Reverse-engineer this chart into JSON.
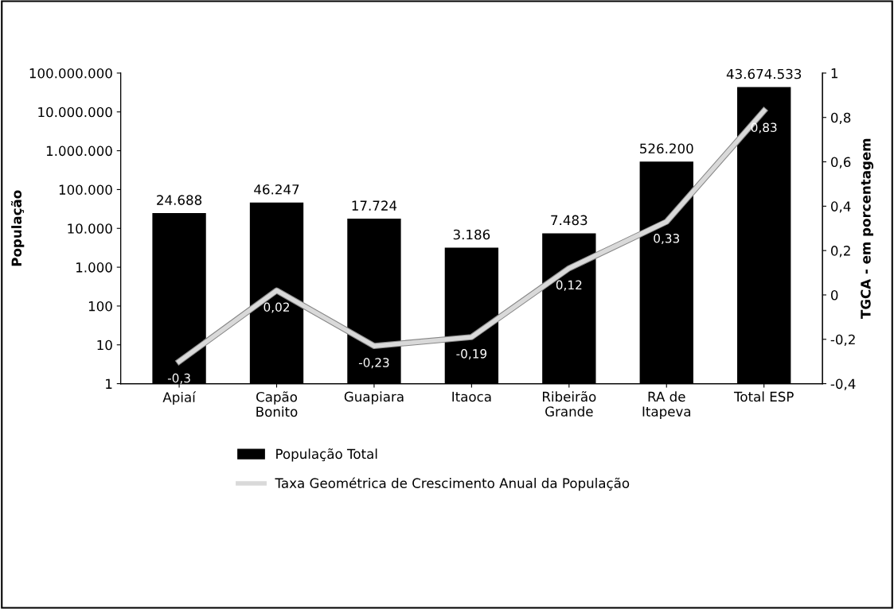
{
  "chart_data": {
    "type": "bar",
    "categories": [
      "Apiaí",
      "Capão\nBonito",
      "Guapiara",
      "Itaoca",
      "Ribeirão\nGrande",
      "RA de\nItapeva",
      "Total ESP"
    ],
    "ylabel": "População",
    "y2label": "TGCA - em porcentagem",
    "log": "y",
    "legend": "bottom",
    "ylim": [
      1,
      100000000
    ],
    "yticks": [
      {
        "value": 1,
        "label": "1"
      },
      {
        "value": 10,
        "label": "10"
      },
      {
        "value": 100,
        "label": "100"
      },
      {
        "value": 1000,
        "label": "1.000"
      },
      {
        "value": 10000,
        "label": "10.000"
      },
      {
        "value": 100000,
        "label": "100.000"
      },
      {
        "value": 1000000,
        "label": "1.000.000"
      },
      {
        "value": 10000000,
        "label": "10.000.000"
      },
      {
        "value": 100000000,
        "label": "100.000.000"
      }
    ],
    "y2lim": [
      -0.4,
      1
    ],
    "y2ticks": [
      {
        "value": -0.4,
        "label": "-0,4"
      },
      {
        "value": -0.2,
        "label": "-0,2"
      },
      {
        "value": 0,
        "label": "0"
      },
      {
        "value": 0.2,
        "label": "0,2"
      },
      {
        "value": 0.4,
        "label": "0,4"
      },
      {
        "value": 0.6,
        "label": "0,6"
      },
      {
        "value": 0.8,
        "label": "0,8"
      },
      {
        "value": 1,
        "label": "1"
      }
    ],
    "series": [
      {
        "name": "População Total",
        "color": "#000000",
        "values": [
          24688,
          46247,
          17724,
          3186,
          7483,
          526200,
          43674533
        ],
        "value_labels": [
          "24.688",
          "46.247",
          "17.724",
          "3.186",
          "7.483",
          "526.200",
          "43.674.533"
        ]
      },
      {
        "name": "Taxa Geométrica de Crescimento Anual da População",
        "type": "line",
        "axis": "y2",
        "color": "#d9d9d9",
        "values": [
          -0.3,
          0.02,
          -0.23,
          -0.19,
          0.12,
          0.33,
          0.83
        ],
        "value_labels": [
          "-0,3",
          "0,02",
          "-0,23",
          "-0,19",
          "0,12",
          "0,33",
          "0,83"
        ]
      }
    ]
  }
}
